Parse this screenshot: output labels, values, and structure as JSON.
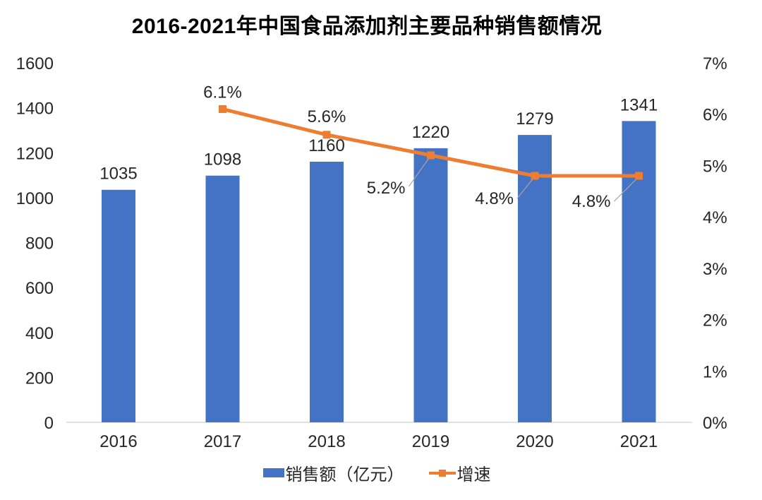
{
  "chart_data": {
    "type": "combo-bar-line",
    "title": "2016-2021年中国食品添加剂主要品种销售额情况",
    "categories": [
      "2016",
      "2017",
      "2018",
      "2019",
      "2020",
      "2021"
    ],
    "series": [
      {
        "name": "销售额（亿元）",
        "type": "bar",
        "axis": "left",
        "values": [
          1035,
          1098,
          1160,
          1220,
          1279,
          1341
        ],
        "data_labels": [
          "1035",
          "1098",
          "1160",
          "1220",
          "1279",
          "1341"
        ],
        "color": "#4472C4"
      },
      {
        "name": "增速",
        "type": "line",
        "axis": "right",
        "values": [
          null,
          6.1,
          5.6,
          5.2,
          4.8,
          4.8
        ],
        "data_labels": [
          "",
          "6.1%",
          "5.6%",
          "5.2%",
          "4.8%",
          "4.8%"
        ],
        "color": "#ED7D31"
      }
    ],
    "left_axis": {
      "min": 0,
      "max": 1600,
      "step": 200,
      "ticks": [
        "0",
        "200",
        "400",
        "600",
        "800",
        "1000",
        "1200",
        "1400",
        "1600"
      ]
    },
    "right_axis": {
      "min": 0,
      "max": 7,
      "step": 1,
      "ticks": [
        "0%",
        "1%",
        "2%",
        "3%",
        "4%",
        "5%",
        "6%",
        "7%"
      ]
    },
    "grid": false,
    "legend_position": "bottom",
    "colors": {
      "bar": "#4472C4",
      "line": "#ED7D31",
      "axis_line": "#D9D9D9",
      "leader_line": "#A6A6A6",
      "text": "#262626",
      "title_text": "#000000",
      "background": "#FFFFFF"
    }
  }
}
